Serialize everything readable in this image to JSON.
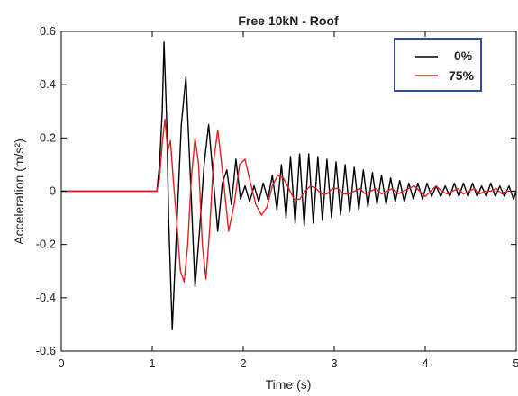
{
  "chart_data": {
    "type": "line",
    "title": "Free 10kN - Roof",
    "xlabel": "Time (s)",
    "ylabel": "Acceleration (m/s²)",
    "xlim": [
      0,
      5
    ],
    "ylim": [
      -0.6,
      0.6
    ],
    "xticks": [
      0,
      1,
      2,
      3,
      4,
      5
    ],
    "yticks": [
      -0.6,
      -0.4,
      -0.2,
      0,
      0.2,
      0.4,
      0.6
    ],
    "grid": false,
    "legend_position": "top-right",
    "series": [
      {
        "name": "0%",
        "color": "#000000",
        "x": [
          0,
          1.05,
          1.08,
          1.11,
          1.13,
          1.16,
          1.18,
          1.22,
          1.26,
          1.32,
          1.37,
          1.42,
          1.47,
          1.52,
          1.57,
          1.62,
          1.67,
          1.72,
          1.77,
          1.82,
          1.87,
          1.92,
          1.97,
          2.02,
          2.07,
          2.12,
          2.17,
          2.22,
          2.27,
          2.32,
          2.37,
          2.42,
          2.47,
          2.52,
          2.57,
          2.62,
          2.67,
          2.72,
          2.77,
          2.82,
          2.87,
          2.92,
          2.97,
          3.02,
          3.07,
          3.12,
          3.17,
          3.22,
          3.27,
          3.32,
          3.37,
          3.42,
          3.47,
          3.52,
          3.57,
          3.62,
          3.67,
          3.72,
          3.77,
          3.82,
          3.87,
          3.92,
          3.97,
          4.02,
          4.07,
          4.12,
          4.17,
          4.22,
          4.27,
          4.32,
          4.37,
          4.42,
          4.47,
          4.52,
          4.57,
          4.62,
          4.67,
          4.72,
          4.77,
          4.82,
          4.87,
          4.92,
          4.97,
          5.0
        ],
        "y": [
          0,
          0,
          0.1,
          0.3,
          0.56,
          0.25,
          -0.1,
          -0.52,
          -0.2,
          0.25,
          0.43,
          0.05,
          -0.36,
          -0.15,
          0.1,
          0.25,
          0.05,
          -0.15,
          0.03,
          0.08,
          -0.05,
          0.12,
          -0.03,
          0.02,
          -0.04,
          0.02,
          -0.04,
          0.03,
          -0.03,
          0.06,
          -0.07,
          0.1,
          -0.1,
          0.13,
          -0.12,
          0.14,
          -0.13,
          0.14,
          -0.12,
          0.13,
          -0.11,
          0.12,
          -0.1,
          0.11,
          -0.09,
          0.1,
          -0.08,
          0.09,
          -0.07,
          0.08,
          -0.06,
          0.07,
          -0.05,
          0.06,
          -0.05,
          0.05,
          -0.04,
          0.04,
          -0.04,
          0.03,
          -0.03,
          0.03,
          -0.03,
          0.03,
          -0.02,
          0.02,
          -0.02,
          0.02,
          -0.02,
          0.03,
          -0.02,
          0.03,
          -0.02,
          0.03,
          -0.02,
          0.02,
          -0.02,
          0.03,
          -0.02,
          0.02,
          -0.02,
          0.02,
          -0.03,
          0.0
        ]
      },
      {
        "name": "75%",
        "color": "#e02020",
        "x": [
          0,
          1.05,
          1.08,
          1.11,
          1.14,
          1.17,
          1.2,
          1.23,
          1.27,
          1.31,
          1.35,
          1.39,
          1.43,
          1.47,
          1.51,
          1.55,
          1.59,
          1.63,
          1.67,
          1.72,
          1.78,
          1.84,
          1.9,
          1.96,
          2.02,
          2.08,
          2.14,
          2.2,
          2.26,
          2.32,
          2.38,
          2.44,
          2.5,
          2.56,
          2.62,
          2.68,
          2.74,
          2.8,
          2.86,
          2.92,
          2.98,
          3.04,
          3.1,
          3.16,
          3.22,
          3.28,
          3.34,
          3.4,
          3.46,
          3.52,
          3.58,
          3.64,
          3.7,
          3.76,
          3.82,
          3.88,
          3.94,
          4.0,
          4.06,
          4.12,
          4.18,
          4.24,
          4.3,
          4.36,
          4.42,
          4.48,
          4.54,
          4.6,
          4.66,
          4.72,
          4.78,
          4.84,
          4.9,
          4.96,
          5.0
        ],
        "y": [
          0,
          0,
          0.05,
          0.18,
          0.27,
          0.15,
          0.19,
          0.05,
          -0.12,
          -0.3,
          -0.34,
          -0.2,
          0.05,
          0.2,
          0.1,
          -0.2,
          -0.33,
          -0.15,
          0.1,
          0.23,
          0.05,
          -0.15,
          -0.05,
          0.1,
          0.12,
          0.03,
          -0.05,
          -0.09,
          -0.06,
          0.02,
          0.06,
          0.05,
          0.01,
          -0.03,
          -0.03,
          0.0,
          0.02,
          0.01,
          -0.01,
          -0.01,
          0.01,
          0.01,
          -0.01,
          -0.01,
          0.0,
          0.01,
          -0.01,
          0.0,
          0.01,
          -0.01,
          0.0,
          0.01,
          -0.01,
          0.0,
          0.01,
          0.02,
          0.0,
          -0.02,
          0.0,
          0.02,
          0.0,
          -0.01,
          0.0,
          0.01,
          -0.01,
          0.0,
          0.01,
          -0.01,
          0.0,
          0.0,
          0.01,
          -0.01,
          0.0,
          0.0,
          0.0
        ]
      }
    ]
  }
}
